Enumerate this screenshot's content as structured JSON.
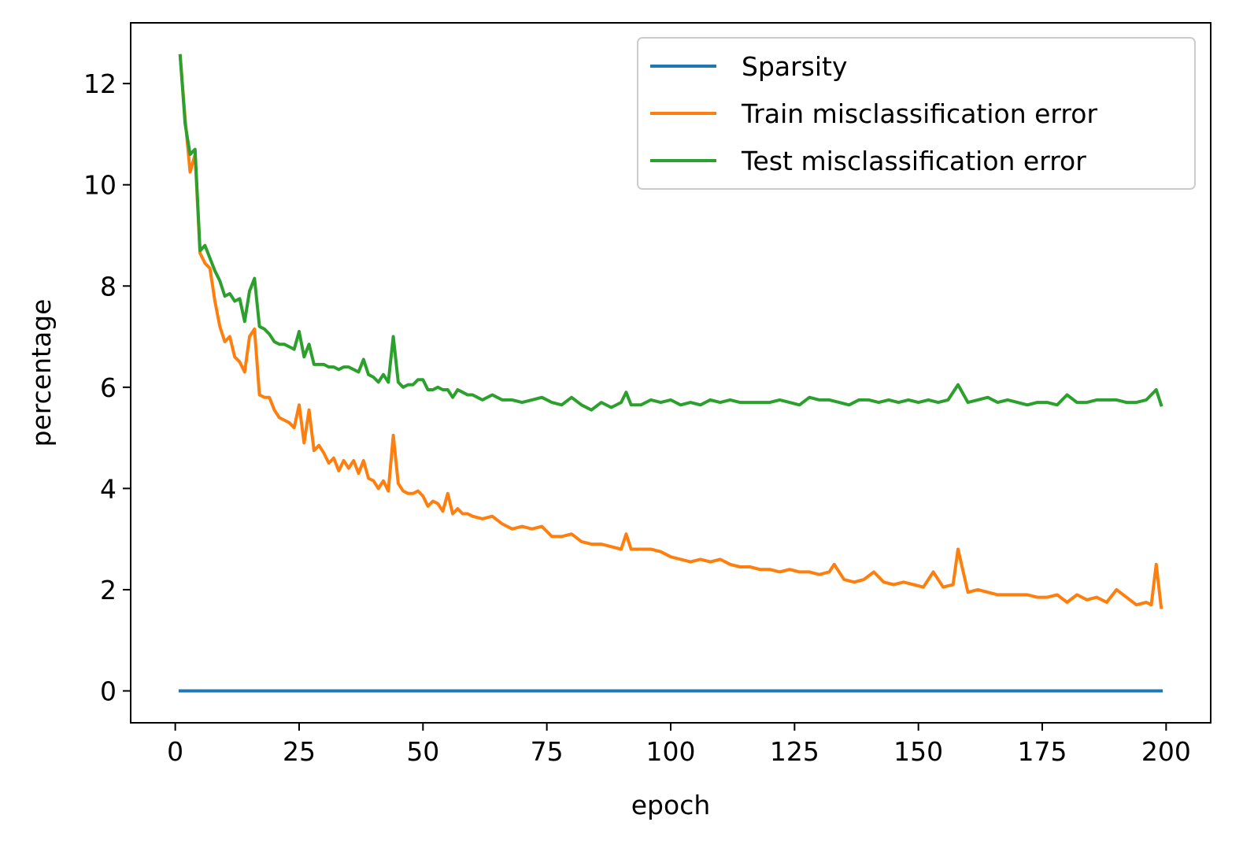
{
  "chart_data": {
    "type": "line",
    "xlabel": "epoch",
    "ylabel": "percentage",
    "xlim": [
      -9,
      209
    ],
    "ylim": [
      -0.63,
      13.2
    ],
    "xticks": [
      0,
      25,
      50,
      75,
      100,
      125,
      150,
      175,
      200
    ],
    "yticks": [
      0,
      2,
      4,
      6,
      8,
      10,
      12
    ],
    "grid": false,
    "legend_position": "top-right",
    "series": [
      {
        "name": "Sparsity",
        "color": "#1f77b4",
        "x": [
          1,
          10,
          20,
          30,
          40,
          50,
          60,
          70,
          80,
          90,
          100,
          110,
          120,
          130,
          140,
          150,
          160,
          170,
          180,
          190,
          199
        ],
        "y": [
          0.0,
          0.0,
          0.0,
          0.0,
          0.0,
          0.0,
          0.0,
          0.0,
          0.0,
          0.0,
          0.0,
          0.0,
          0.0,
          0.0,
          0.0,
          0.0,
          0.0,
          0.0,
          0.0,
          0.0,
          0.0
        ]
      },
      {
        "name": "Train misclassification error",
        "color": "#ff7f0e",
        "x": [
          1,
          2,
          3,
          4,
          5,
          6,
          7,
          8,
          9,
          10,
          11,
          12,
          13,
          14,
          15,
          16,
          17,
          18,
          19,
          20,
          21,
          22,
          23,
          24,
          25,
          26,
          27,
          28,
          29,
          30,
          31,
          32,
          33,
          34,
          35,
          36,
          37,
          38,
          39,
          40,
          41,
          42,
          43,
          44,
          45,
          46,
          47,
          48,
          49,
          50,
          51,
          52,
          53,
          54,
          55,
          56,
          57,
          58,
          59,
          60,
          62,
          64,
          66,
          68,
          70,
          72,
          74,
          76,
          78,
          80,
          82,
          84,
          86,
          88,
          90,
          91,
          92,
          94,
          96,
          98,
          100,
          102,
          104,
          106,
          108,
          110,
          112,
          114,
          116,
          118,
          120,
          122,
          124,
          126,
          128,
          130,
          132,
          133,
          135,
          137,
          139,
          141,
          143,
          145,
          147,
          149,
          151,
          153,
          155,
          157,
          158,
          160,
          162,
          164,
          166,
          168,
          170,
          172,
          174,
          176,
          178,
          180,
          182,
          184,
          186,
          188,
          190,
          192,
          194,
          196,
          197,
          198,
          199
        ],
        "y": [
          12.55,
          11.3,
          10.25,
          10.6,
          8.65,
          8.45,
          8.35,
          7.7,
          7.2,
          6.9,
          7.0,
          6.6,
          6.5,
          6.3,
          7.0,
          7.15,
          5.85,
          5.8,
          5.8,
          5.55,
          5.4,
          5.35,
          5.3,
          5.2,
          5.65,
          4.9,
          5.55,
          4.75,
          4.85,
          4.7,
          4.5,
          4.6,
          4.35,
          4.55,
          4.4,
          4.55,
          4.3,
          4.55,
          4.2,
          4.15,
          4.0,
          4.15,
          3.95,
          5.05,
          4.1,
          3.95,
          3.9,
          3.9,
          3.95,
          3.85,
          3.65,
          3.75,
          3.7,
          3.55,
          3.9,
          3.5,
          3.6,
          3.5,
          3.5,
          3.45,
          3.4,
          3.45,
          3.3,
          3.2,
          3.25,
          3.2,
          3.25,
          3.05,
          3.05,
          3.1,
          2.95,
          2.9,
          2.9,
          2.85,
          2.8,
          3.1,
          2.8,
          2.8,
          2.8,
          2.75,
          2.65,
          2.6,
          2.55,
          2.6,
          2.55,
          2.6,
          2.5,
          2.45,
          2.45,
          2.4,
          2.4,
          2.35,
          2.4,
          2.35,
          2.35,
          2.3,
          2.35,
          2.5,
          2.2,
          2.15,
          2.2,
          2.35,
          2.15,
          2.1,
          2.15,
          2.1,
          2.05,
          2.35,
          2.05,
          2.1,
          2.8,
          1.95,
          2.0,
          1.95,
          1.9,
          1.9,
          1.9,
          1.9,
          1.85,
          1.85,
          1.9,
          1.75,
          1.9,
          1.8,
          1.85,
          1.75,
          2.0,
          1.85,
          1.7,
          1.75,
          1.7,
          2.5,
          1.65
        ]
      },
      {
        "name": "Test misclassification error",
        "color": "#2ca02c",
        "x": [
          1,
          2,
          3,
          4,
          5,
          6,
          7,
          8,
          9,
          10,
          11,
          12,
          13,
          14,
          15,
          16,
          17,
          18,
          19,
          20,
          21,
          22,
          23,
          24,
          25,
          26,
          27,
          28,
          29,
          30,
          31,
          32,
          33,
          34,
          35,
          36,
          37,
          38,
          39,
          40,
          41,
          42,
          43,
          44,
          45,
          46,
          47,
          48,
          49,
          50,
          51,
          52,
          53,
          54,
          55,
          56,
          57,
          58,
          59,
          60,
          62,
          64,
          66,
          68,
          70,
          72,
          74,
          76,
          78,
          80,
          82,
          84,
          86,
          88,
          90,
          91,
          92,
          94,
          96,
          98,
          100,
          102,
          104,
          106,
          108,
          110,
          112,
          114,
          116,
          118,
          120,
          122,
          124,
          126,
          128,
          130,
          132,
          134,
          136,
          138,
          140,
          142,
          144,
          146,
          148,
          150,
          152,
          154,
          156,
          158,
          160,
          162,
          164,
          166,
          168,
          170,
          172,
          174,
          176,
          178,
          180,
          182,
          184,
          186,
          188,
          190,
          192,
          194,
          196,
          198,
          199
        ],
        "y": [
          12.55,
          11.2,
          10.6,
          10.7,
          8.7,
          8.8,
          8.55,
          8.3,
          8.1,
          7.8,
          7.85,
          7.7,
          7.75,
          7.3,
          7.9,
          8.15,
          7.2,
          7.15,
          7.05,
          6.9,
          6.85,
          6.85,
          6.8,
          6.75,
          7.1,
          6.6,
          6.85,
          6.45,
          6.45,
          6.45,
          6.4,
          6.4,
          6.35,
          6.4,
          6.4,
          6.35,
          6.3,
          6.55,
          6.25,
          6.2,
          6.1,
          6.25,
          6.1,
          7.0,
          6.1,
          6.0,
          6.05,
          6.05,
          6.15,
          6.15,
          5.95,
          5.95,
          6.0,
          5.95,
          5.95,
          5.8,
          5.95,
          5.9,
          5.85,
          5.85,
          5.75,
          5.85,
          5.75,
          5.75,
          5.7,
          5.75,
          5.8,
          5.7,
          5.65,
          5.8,
          5.65,
          5.55,
          5.7,
          5.6,
          5.7,
          5.9,
          5.65,
          5.65,
          5.75,
          5.7,
          5.75,
          5.65,
          5.7,
          5.65,
          5.75,
          5.7,
          5.75,
          5.7,
          5.7,
          5.7,
          5.7,
          5.75,
          5.7,
          5.65,
          5.8,
          5.75,
          5.75,
          5.7,
          5.65,
          5.75,
          5.75,
          5.7,
          5.75,
          5.7,
          5.75,
          5.7,
          5.75,
          5.7,
          5.75,
          6.05,
          5.7,
          5.75,
          5.8,
          5.7,
          5.75,
          5.7,
          5.65,
          5.7,
          5.7,
          5.65,
          5.85,
          5.7,
          5.7,
          5.75,
          5.75,
          5.75,
          5.7,
          5.7,
          5.75,
          5.95,
          5.65
        ]
      }
    ]
  }
}
